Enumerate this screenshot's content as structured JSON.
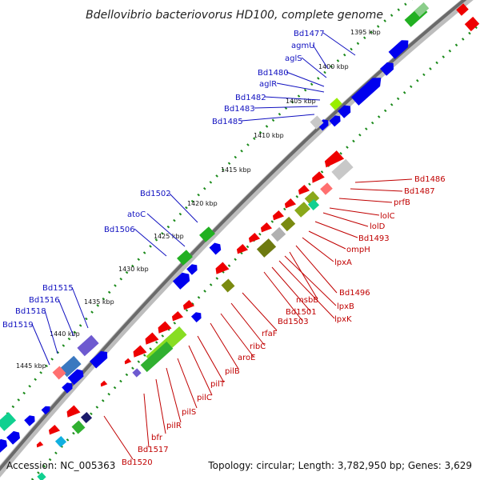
{
  "title": "Bdellovibrio bacteriovorus HD100, complete genome",
  "accession": "Accession: NC_005363",
  "topology": "Topology: circular; Length: 3,782,950 bp; Genes: 3,629",
  "scale_labels": [
    "1395 kbp",
    "1400 kbp",
    "1405 kbp",
    "1410 kbp",
    "1415 kbp",
    "1420 kbp",
    "1425 kbp",
    "1430 kbp",
    "1435 kbp",
    "1440 kbp",
    "1445 kbp"
  ],
  "labels_blue": [
    "Bd1477",
    "agmU",
    "aglS",
    "Bd1480",
    "aglR",
    "Bd1482",
    "Bd1483",
    "Bd1485",
    "Bd1502",
    "atoC",
    "Bd1506",
    "Bd1515",
    "Bd1516",
    "Bd1518",
    "Bd1519"
  ],
  "labels_red": [
    "Bd1486",
    "Bd1487",
    "prfB",
    "lolC",
    "lolD",
    "Bd1493",
    "ompH",
    "lpxA",
    "Bd1496",
    "msbB",
    "lpxB",
    "lpxK",
    "Bd1501",
    "Bd1503",
    "rfaF",
    "ribC",
    "aroE",
    "pilB",
    "pilT",
    "pilC",
    "pilS",
    "pilR",
    "bfr",
    "Bd1517",
    "Bd1520"
  ],
  "colors": {
    "forward": "#0000ee",
    "reverse": "#ee0000",
    "backbone": "#777777",
    "ticks": "#1a8a1a"
  }
}
